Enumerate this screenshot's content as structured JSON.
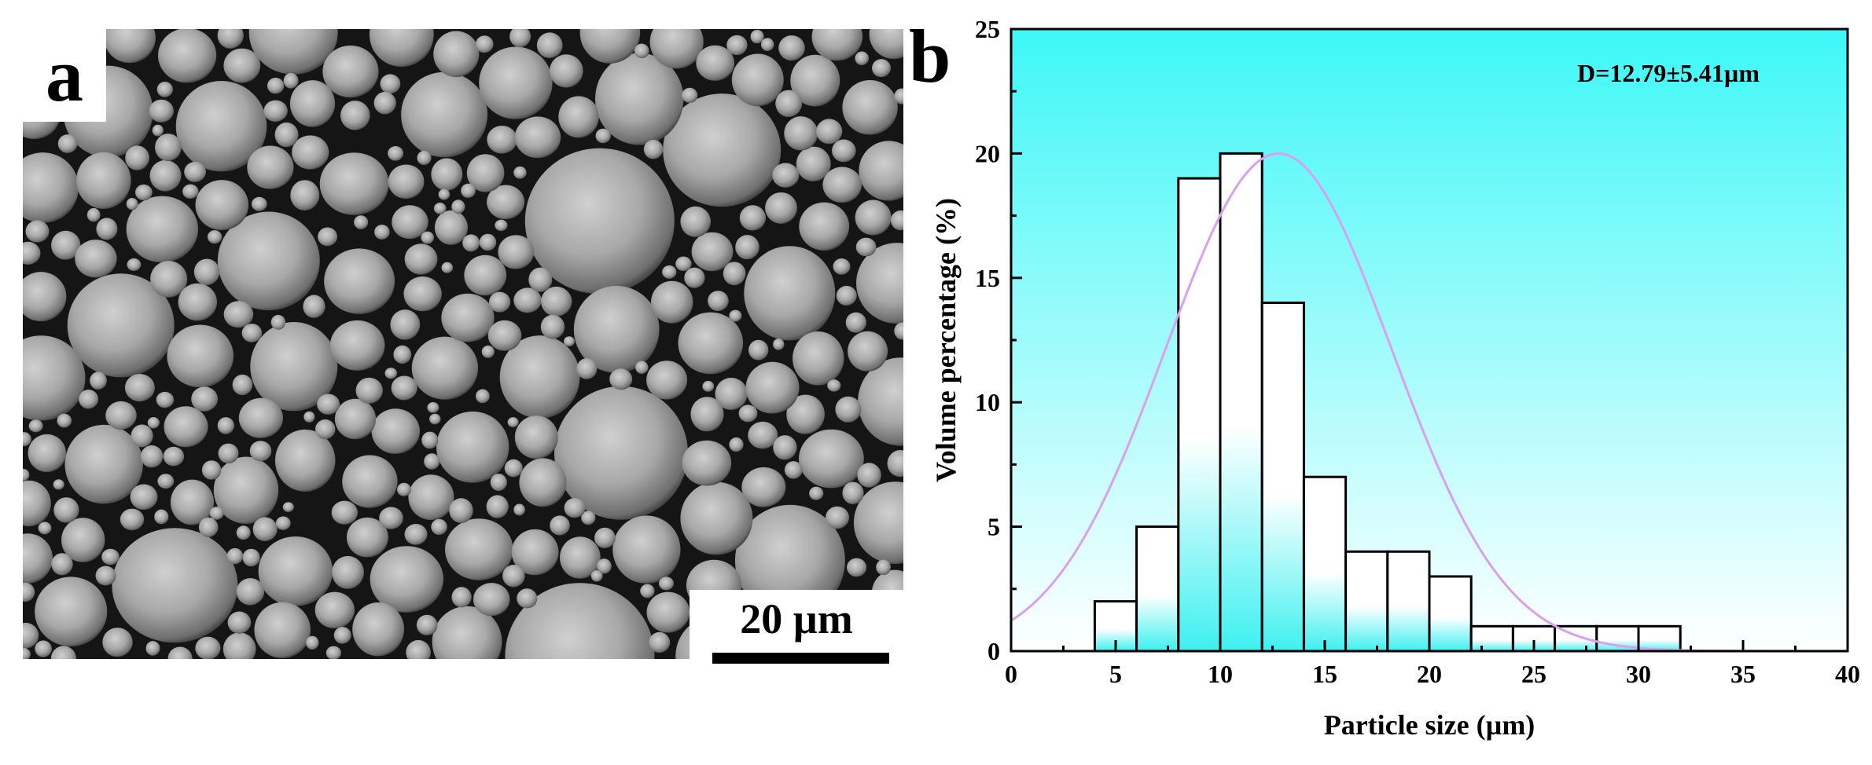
{
  "panel_a": {
    "label": "a",
    "scale_bar_label": "20 µm"
  },
  "panel_b": {
    "label": "b"
  },
  "chart_data": {
    "type": "bar",
    "title": "",
    "xlabel": "Particle size (µm)",
    "ylabel": "Volume percentage (%)",
    "annotation": "D=12.79±5.41µm",
    "xlim": [
      0,
      40
    ],
    "ylim": [
      0,
      25
    ],
    "xticks": [
      0,
      5,
      10,
      15,
      20,
      25,
      30,
      35,
      40
    ],
    "yticks": [
      0,
      5,
      10,
      15,
      20,
      25
    ],
    "bins": [
      {
        "x0": 4,
        "x1": 6,
        "value": 2
      },
      {
        "x0": 6,
        "x1": 8,
        "value": 5
      },
      {
        "x0": 8,
        "x1": 10,
        "value": 19
      },
      {
        "x0": 10,
        "x1": 12,
        "value": 20
      },
      {
        "x0": 12,
        "x1": 14,
        "value": 14
      },
      {
        "x0": 14,
        "x1": 16,
        "value": 7
      },
      {
        "x0": 16,
        "x1": 18,
        "value": 4
      },
      {
        "x0": 18,
        "x1": 20,
        "value": 4
      },
      {
        "x0": 20,
        "x1": 22,
        "value": 3
      },
      {
        "x0": 22,
        "x1": 24,
        "value": 1
      },
      {
        "x0": 24,
        "x1": 26,
        "value": 1
      },
      {
        "x0": 26,
        "x1": 28,
        "value": 1
      },
      {
        "x0": 28,
        "x1": 30,
        "value": 1
      },
      {
        "x0": 30,
        "x1": 32,
        "value": 1
      }
    ],
    "fit_curve": {
      "type": "normal",
      "mean": 12.79,
      "sd": 5.41,
      "peak": 20
    },
    "colors": {
      "plot_background_top": "#3ef7f7",
      "plot_background_bottom": "#ffffff",
      "bar_top": "#ffffff",
      "bar_bottom": "#3ef0f0",
      "bar_edge": "#000000",
      "fit_curve": "#d9a0f0"
    },
    "grid": false,
    "legend": "none"
  }
}
